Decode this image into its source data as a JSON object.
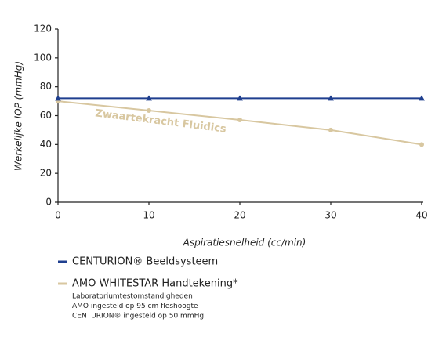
{
  "chart_data": {
    "type": "line",
    "x_label": "Aspiratiesnelheid (cc/min)",
    "y_label": "Werkelijke IOP (mmHg)",
    "x": [
      0,
      10,
      20,
      30,
      40
    ],
    "xlim": [
      0,
      40
    ],
    "xticks": [
      0,
      10,
      20,
      30,
      40
    ],
    "ylim": [
      0,
      120
    ],
    "yticks": [
      0,
      20,
      40,
      60,
      80,
      100,
      120
    ],
    "series": [
      {
        "name": "CENTURION® Beeldsysteem",
        "color": "#1f3f8f",
        "marker": "triangle",
        "values": [
          72,
          72,
          72,
          72,
          72
        ]
      },
      {
        "name": "AMO WHITESTAR Handtekening*",
        "color": "#d8c7a0",
        "marker": "circle",
        "values": [
          70,
          63.5,
          57,
          50,
          40
        ]
      }
    ],
    "annotation": "Zwaartekracht Fluidics",
    "notes": [
      "Laboratoriumtestomstandigheden",
      "AMO ingesteld op 95 cm fleshoogte",
      "CENTURION® ingesteld op 50 mmHg"
    ],
    "grid": false
  }
}
